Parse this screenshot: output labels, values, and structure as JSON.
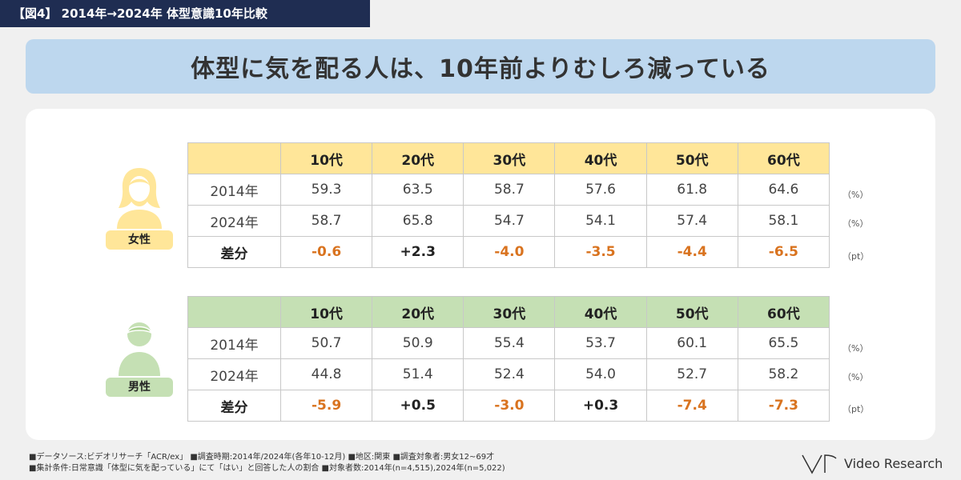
{
  "figure_tag": "【図4】 2014年→2024年 体型意識10年比較",
  "headline": "体型に気を配る人は、10年前よりむしろ減っている",
  "columns": [
    "10代",
    "20代",
    "30代",
    "40代",
    "50代",
    "60代"
  ],
  "female": {
    "badge": "女性",
    "rows": [
      {
        "label": "2014年",
        "values": [
          "59.3",
          "63.5",
          "58.7",
          "57.6",
          "61.8",
          "64.6"
        ],
        "unit": "（%）"
      },
      {
        "label": "2024年",
        "values": [
          "58.7",
          "65.8",
          "54.7",
          "54.1",
          "57.4",
          "58.1"
        ],
        "unit": "（%）"
      },
      {
        "label": "差分",
        "values": [
          "-0.6",
          "+2.3",
          "-4.0",
          "-3.5",
          "-4.4",
          "-6.5"
        ],
        "unit": "（pt）"
      }
    ]
  },
  "male": {
    "badge": "男性",
    "rows": [
      {
        "label": "2014年",
        "values": [
          "50.7",
          "50.9",
          "55.4",
          "53.7",
          "60.1",
          "65.5"
        ],
        "unit": "（%）"
      },
      {
        "label": "2024年",
        "values": [
          "44.8",
          "51.4",
          "52.4",
          "54.0",
          "52.7",
          "58.2"
        ],
        "unit": "（%）"
      },
      {
        "label": "差分",
        "values": [
          "-5.9",
          "+0.5",
          "-3.0",
          "+0.3",
          "-7.4",
          "-7.3"
        ],
        "unit": "（pt）"
      }
    ]
  },
  "footnotes": {
    "line1": "■データソース:ビデオリサーチ「ACR/ex」 ■調査時期:2014年/2024年(各年10-12月) ■地区:関東 ■調査対象者:男女12~69才",
    "line2": "■集計条件:日常意識「体型に気を配っている」にて「はい」と回答した人の割合 ■対象者数:2014年(n=4,515),2024年(n=5,022)"
  },
  "logo": {
    "text": "Video Research"
  },
  "colors": {
    "female_header": "#ffe699",
    "male_header": "#c5e0b4",
    "negative_diff": "#d9731f",
    "headline_bg": "#bdd7ee",
    "tag_bg": "#1f2d52"
  }
}
